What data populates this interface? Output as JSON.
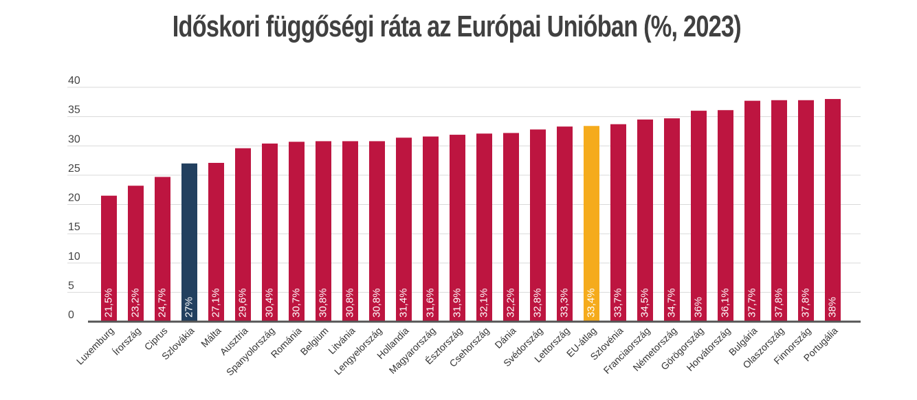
{
  "chart_data": {
    "type": "bar",
    "title": "Időskori függőségi ráta az Európai Unióban (%, 2023)",
    "categories": [
      "Luxemburg",
      "Írország",
      "Ciprus",
      "Szlovákia",
      "Málta",
      "Ausztria",
      "Spanyolország",
      "Románia",
      "Belgium",
      "Litvánia",
      "Lengyelország",
      "Hollandia",
      "Magyarország",
      "Észtország",
      "Csehország",
      "Dánia",
      "Svédország",
      "Lettország",
      "EU-átlag",
      "Szlovénia",
      "Franciaország",
      "Németország",
      "Görögország",
      "Horvátország",
      "Bulgária",
      "Olaszország",
      "Finnország",
      "Portugália"
    ],
    "values": [
      21.5,
      23.2,
      24.7,
      27,
      27.1,
      29.6,
      30.4,
      30.7,
      30.8,
      30.8,
      30.8,
      31.4,
      31.6,
      31.9,
      32.1,
      32.2,
      32.8,
      33.3,
      33.4,
      33.7,
      34.5,
      34.7,
      36,
      36.1,
      37.7,
      37.8,
      37.8,
      38
    ],
    "data_labels": [
      "21,5%",
      "23,2%",
      "24,7%",
      "27%",
      "27,1%",
      "29,6%",
      "30,4%",
      "30,7%",
      "30,8%",
      "30,8%",
      "30,8%",
      "31,4%",
      "31,6%",
      "31,9%",
      "32,1%",
      "32,2%",
      "32,8%",
      "33,3%",
      "33,4%",
      "33,7%",
      "34,5%",
      "34,7%",
      "36%",
      "36,1%",
      "37,7%",
      "37,8%",
      "37,8%",
      "38%"
    ],
    "ylim": [
      0,
      40
    ],
    "yticks": [
      0,
      5,
      10,
      15,
      20,
      25,
      30,
      35,
      40
    ],
    "grid": true,
    "colors": {
      "default": "#bd1540",
      "highlight": "#22405f",
      "average": "#f5ab1c",
      "grid": "#d9d9d9",
      "axis": "#555555"
    },
    "highlight_category": "Szlovákia",
    "average_category": "EU-átlag"
  }
}
